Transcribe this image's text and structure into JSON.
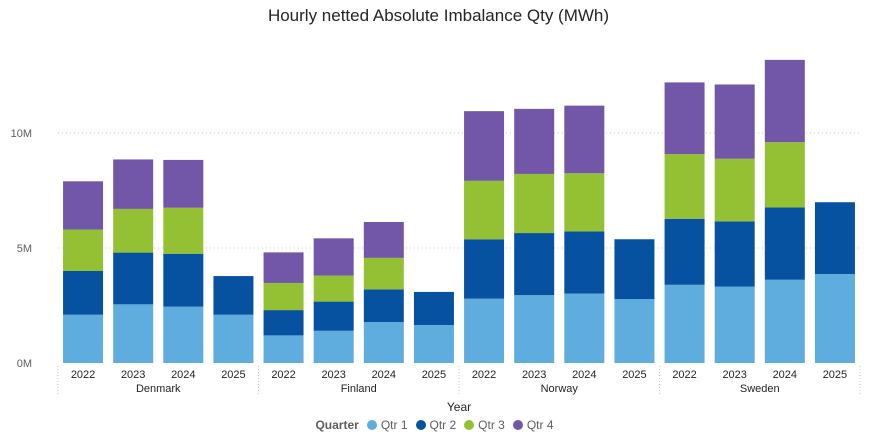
{
  "chart_data": {
    "type": "bar",
    "stacked": true,
    "title": "Hourly netted Absolute Imbalance Qty (MWh)",
    "xlabel": "Year",
    "ylabel": "",
    "ylim": [
      0,
      13500000
    ],
    "yticks": [
      0,
      5000000,
      10000000
    ],
    "ytick_labels": [
      "0M",
      "5M",
      "10M"
    ],
    "grid": "horizontal dotted",
    "groups": [
      {
        "name": "Denmark",
        "categories": [
          "2022",
          "2023",
          "2024",
          "2025"
        ]
      },
      {
        "name": "Finland",
        "categories": [
          "2022",
          "2023",
          "2024",
          "2025"
        ]
      },
      {
        "name": "Norway",
        "categories": [
          "2022",
          "2023",
          "2024",
          "2025"
        ]
      },
      {
        "name": "Sweden",
        "categories": [
          "2022",
          "2023",
          "2024",
          "2025"
        ]
      }
    ],
    "series": [
      {
        "name": "Qtr 1",
        "color": "#5fadde",
        "values": [
          2100000,
          2550000,
          2450000,
          2100000,
          1200000,
          1400000,
          1780000,
          1650000,
          2800000,
          2950000,
          3020000,
          2780000,
          3400000,
          3320000,
          3620000,
          3870000
        ]
      },
      {
        "name": "Qtr 2",
        "color": "#0652a0",
        "values": [
          1900000,
          2250000,
          2300000,
          1680000,
          1100000,
          1270000,
          1420000,
          1440000,
          2580000,
          2700000,
          2700000,
          2600000,
          2870000,
          2840000,
          3140000,
          3120000
        ]
      },
      {
        "name": "Qtr 3",
        "color": "#94c134",
        "values": [
          1800000,
          1900000,
          2000000,
          0,
          1180000,
          1130000,
          1370000,
          0,
          2540000,
          2570000,
          2530000,
          0,
          2810000,
          2720000,
          2840000,
          0
        ]
      },
      {
        "name": "Qtr 4",
        "color": "#7257a8",
        "values": [
          2100000,
          2150000,
          2080000,
          0,
          1330000,
          1620000,
          1560000,
          0,
          3030000,
          2830000,
          2940000,
          0,
          3120000,
          3230000,
          3580000,
          0
        ]
      }
    ]
  },
  "legend": {
    "title": "Quarter",
    "items": [
      {
        "label": "Qtr 1",
        "color": "#5fadde"
      },
      {
        "label": "Qtr 2",
        "color": "#0652a0"
      },
      {
        "label": "Qtr 3",
        "color": "#94c134"
      },
      {
        "label": "Qtr 4",
        "color": "#7257a8"
      }
    ]
  }
}
